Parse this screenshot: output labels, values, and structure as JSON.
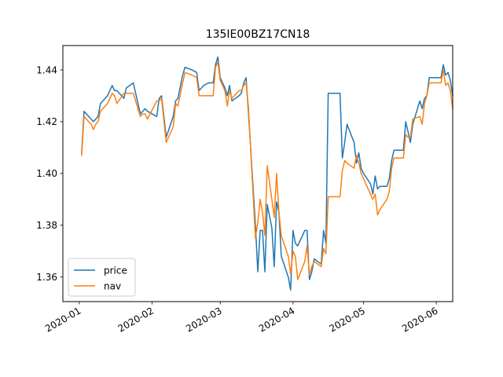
{
  "chart_data": {
    "type": "line",
    "title": "135IE00BZ17CN18",
    "xlabel": "",
    "ylabel": "",
    "x_ticks": [
      "2020-01",
      "2020-02",
      "2020-03",
      "2020-04",
      "2020-05",
      "2020-06"
    ],
    "y_ticks": [
      "1.36",
      "1.38",
      "1.40",
      "1.42",
      "1.44"
    ],
    "xlim": [
      "2019-12-25",
      "2020-06-08"
    ],
    "ylim": [
      1.3505,
      1.4494
    ],
    "grid": false,
    "legend_position": "lower-left",
    "series": [
      {
        "name": "price",
        "color": "#1f77b4",
        "points": [
          [
            "2020-01-02",
            1.408
          ],
          [
            "2020-01-03",
            1.424
          ],
          [
            "2020-01-06",
            1.421
          ],
          [
            "2020-01-07",
            1.42
          ],
          [
            "2020-01-08",
            1.421
          ],
          [
            "2020-01-09",
            1.422
          ],
          [
            "2020-01-10",
            1.427
          ],
          [
            "2020-01-13",
            1.43
          ],
          [
            "2020-01-14",
            1.432
          ],
          [
            "2020-01-15",
            1.434
          ],
          [
            "2020-01-16",
            1.432
          ],
          [
            "2020-01-17",
            1.432
          ],
          [
            "2020-01-20",
            1.429
          ],
          [
            "2020-01-21",
            1.433
          ],
          [
            "2020-01-24",
            1.435
          ],
          [
            "2020-01-27",
            1.423
          ],
          [
            "2020-01-28",
            1.424
          ],
          [
            "2020-01-29",
            1.425
          ],
          [
            "2020-01-30",
            1.424
          ],
          [
            "2020-02-03",
            1.422
          ],
          [
            "2020-02-04",
            1.429
          ],
          [
            "2020-02-05",
            1.43
          ],
          [
            "2020-02-07",
            1.414
          ],
          [
            "2020-02-10",
            1.422
          ],
          [
            "2020-02-11",
            1.428
          ],
          [
            "2020-02-12",
            1.429
          ],
          [
            "2020-02-14",
            1.438
          ],
          [
            "2020-02-15",
            1.441
          ],
          [
            "2020-02-18",
            1.44
          ],
          [
            "2020-02-20",
            1.439
          ],
          [
            "2020-02-21",
            1.432
          ],
          [
            "2020-02-23",
            1.434
          ],
          [
            "2020-02-25",
            1.435
          ],
          [
            "2020-02-27",
            1.435
          ],
          [
            "2020-02-28",
            1.442
          ],
          [
            "2020-02-29",
            1.445
          ],
          [
            "2020-03-01",
            1.437
          ],
          [
            "2020-03-02",
            1.435
          ],
          [
            "2020-03-03",
            1.433
          ],
          [
            "2020-03-04",
            1.43
          ],
          [
            "2020-03-05",
            1.434
          ],
          [
            "2020-03-06",
            1.428
          ],
          [
            "2020-03-09",
            1.43
          ],
          [
            "2020-03-10",
            1.431
          ],
          [
            "2020-03-11",
            1.435
          ],
          [
            "2020-03-12",
            1.437
          ],
          [
            "2020-03-13",
            1.424
          ],
          [
            "2020-03-16",
            1.38
          ],
          [
            "2020-03-17",
            1.362
          ],
          [
            "2020-03-18",
            1.378
          ],
          [
            "2020-03-19",
            1.378
          ],
          [
            "2020-03-20",
            1.362
          ],
          [
            "2020-03-21",
            1.388
          ],
          [
            "2020-03-23",
            1.379
          ],
          [
            "2020-03-24",
            1.364
          ],
          [
            "2020-03-25",
            1.389
          ],
          [
            "2020-03-26",
            1.385
          ],
          [
            "2020-03-27",
            1.368
          ],
          [
            "2020-03-30",
            1.36
          ],
          [
            "2020-03-31",
            1.355
          ],
          [
            "2020-04-01",
            1.378
          ],
          [
            "2020-04-02",
            1.373
          ],
          [
            "2020-04-03",
            1.372
          ],
          [
            "2020-04-06",
            1.378
          ],
          [
            "2020-04-07",
            1.378
          ],
          [
            "2020-04-08",
            1.359
          ],
          [
            "2020-04-09",
            1.362
          ],
          [
            "2020-04-10",
            1.367
          ],
          [
            "2020-04-13",
            1.365
          ],
          [
            "2020-04-14",
            1.378
          ],
          [
            "2020-04-15",
            1.373
          ],
          [
            "2020-04-16",
            1.431
          ],
          [
            "2020-04-17",
            1.431
          ],
          [
            "2020-04-20",
            1.431
          ],
          [
            "2020-04-21",
            1.431
          ],
          [
            "2020-04-22",
            1.406
          ],
          [
            "2020-04-23",
            1.412
          ],
          [
            "2020-04-24",
            1.419
          ],
          [
            "2020-04-27",
            1.412
          ],
          [
            "2020-04-28",
            1.404
          ],
          [
            "2020-04-29",
            1.408
          ],
          [
            "2020-04-30",
            1.402
          ],
          [
            "2020-05-01",
            1.4
          ],
          [
            "2020-05-04",
            1.396
          ],
          [
            "2020-05-05",
            1.392
          ],
          [
            "2020-05-06",
            1.399
          ],
          [
            "2020-05-07",
            1.394
          ],
          [
            "2020-05-08",
            1.395
          ],
          [
            "2020-05-11",
            1.395
          ],
          [
            "2020-05-12",
            1.398
          ],
          [
            "2020-05-13",
            1.405
          ],
          [
            "2020-05-14",
            1.409
          ],
          [
            "2020-05-18",
            1.409
          ],
          [
            "2020-05-19",
            1.42
          ],
          [
            "2020-05-20",
            1.416
          ],
          [
            "2020-05-21",
            1.412
          ],
          [
            "2020-05-22",
            1.419
          ],
          [
            "2020-05-25",
            1.428
          ],
          [
            "2020-05-26",
            1.425
          ],
          [
            "2020-05-27",
            1.429
          ],
          [
            "2020-05-28",
            1.43
          ],
          [
            "2020-05-29",
            1.437
          ],
          [
            "2020-06-01",
            1.437
          ],
          [
            "2020-06-03",
            1.437
          ],
          [
            "2020-06-04",
            1.442
          ],
          [
            "2020-06-05",
            1.438
          ],
          [
            "2020-06-06",
            1.439
          ],
          [
            "2020-06-07",
            1.436
          ],
          [
            "2020-06-08",
            1.43
          ]
        ]
      },
      {
        "name": "nav",
        "color": "#ff7f0e",
        "points": [
          [
            "2020-01-02",
            1.407
          ],
          [
            "2020-01-03",
            1.422
          ],
          [
            "2020-01-06",
            1.419
          ],
          [
            "2020-01-07",
            1.417
          ],
          [
            "2020-01-08",
            1.419
          ],
          [
            "2020-01-09",
            1.42
          ],
          [
            "2020-01-10",
            1.424
          ],
          [
            "2020-01-13",
            1.427
          ],
          [
            "2020-01-14",
            1.429
          ],
          [
            "2020-01-15",
            1.431
          ],
          [
            "2020-01-16",
            1.43
          ],
          [
            "2020-01-17",
            1.427
          ],
          [
            "2020-01-20",
            1.431
          ],
          [
            "2020-01-21",
            1.431
          ],
          [
            "2020-01-24",
            1.431
          ],
          [
            "2020-01-27",
            1.422
          ],
          [
            "2020-01-28",
            1.423
          ],
          [
            "2020-01-29",
            1.423
          ],
          [
            "2020-01-30",
            1.421
          ],
          [
            "2020-02-03",
            1.428
          ],
          [
            "2020-02-04",
            1.428
          ],
          [
            "2020-02-05",
            1.429
          ],
          [
            "2020-02-07",
            1.412
          ],
          [
            "2020-02-10",
            1.418
          ],
          [
            "2020-02-11",
            1.427
          ],
          [
            "2020-02-12",
            1.426
          ],
          [
            "2020-02-14",
            1.435
          ],
          [
            "2020-02-15",
            1.439
          ],
          [
            "2020-02-18",
            1.438
          ],
          [
            "2020-02-20",
            1.437
          ],
          [
            "2020-02-21",
            1.43
          ],
          [
            "2020-02-23",
            1.43
          ],
          [
            "2020-02-25",
            1.43
          ],
          [
            "2020-02-27",
            1.43
          ],
          [
            "2020-02-28",
            1.441
          ],
          [
            "2020-02-29",
            1.443
          ],
          [
            "2020-03-01",
            1.436
          ],
          [
            "2020-03-02",
            1.434
          ],
          [
            "2020-03-03",
            1.432
          ],
          [
            "2020-03-04",
            1.426
          ],
          [
            "2020-03-05",
            1.432
          ],
          [
            "2020-03-06",
            1.429
          ],
          [
            "2020-03-09",
            1.432
          ],
          [
            "2020-03-10",
            1.432
          ],
          [
            "2020-03-11",
            1.434
          ],
          [
            "2020-03-12",
            1.435
          ],
          [
            "2020-03-13",
            1.426
          ],
          [
            "2020-03-16",
            1.375
          ],
          [
            "2020-03-17",
            1.381
          ],
          [
            "2020-03-18",
            1.39
          ],
          [
            "2020-03-19",
            1.385
          ],
          [
            "2020-03-20",
            1.376
          ],
          [
            "2020-03-21",
            1.403
          ],
          [
            "2020-03-23",
            1.39
          ],
          [
            "2020-03-24",
            1.383
          ],
          [
            "2020-03-25",
            1.4
          ],
          [
            "2020-03-26",
            1.385
          ],
          [
            "2020-03-27",
            1.376
          ],
          [
            "2020-03-30",
            1.368
          ],
          [
            "2020-03-31",
            1.361
          ],
          [
            "2020-04-01",
            1.37
          ],
          [
            "2020-04-02",
            1.368
          ],
          [
            "2020-04-03",
            1.359
          ],
          [
            "2020-04-06",
            1.366
          ],
          [
            "2020-04-07",
            1.372
          ],
          [
            "2020-04-08",
            1.361
          ],
          [
            "2020-04-09",
            1.364
          ],
          [
            "2020-04-10",
            1.366
          ],
          [
            "2020-04-13",
            1.364
          ],
          [
            "2020-04-14",
            1.371
          ],
          [
            "2020-04-15",
            1.369
          ],
          [
            "2020-04-16",
            1.391
          ],
          [
            "2020-04-17",
            1.391
          ],
          [
            "2020-04-20",
            1.391
          ],
          [
            "2020-04-21",
            1.391
          ],
          [
            "2020-04-22",
            1.401
          ],
          [
            "2020-04-23",
            1.405
          ],
          [
            "2020-04-24",
            1.404
          ],
          [
            "2020-04-27",
            1.402
          ],
          [
            "2020-04-28",
            1.407
          ],
          [
            "2020-04-29",
            1.404
          ],
          [
            "2020-04-30",
            1.4
          ],
          [
            "2020-05-01",
            1.398
          ],
          [
            "2020-05-04",
            1.392
          ],
          [
            "2020-05-05",
            1.39
          ],
          [
            "2020-05-06",
            1.392
          ],
          [
            "2020-05-07",
            1.384
          ],
          [
            "2020-05-08",
            1.386
          ],
          [
            "2020-05-11",
            1.39
          ],
          [
            "2020-05-12",
            1.393
          ],
          [
            "2020-05-13",
            1.402
          ],
          [
            "2020-05-14",
            1.406
          ],
          [
            "2020-05-18",
            1.406
          ],
          [
            "2020-05-19",
            1.415
          ],
          [
            "2020-05-20",
            1.414
          ],
          [
            "2020-05-21",
            1.414
          ],
          [
            "2020-05-22",
            1.421
          ],
          [
            "2020-05-25",
            1.422
          ],
          [
            "2020-05-26",
            1.419
          ],
          [
            "2020-05-27",
            1.427
          ],
          [
            "2020-05-28",
            1.43
          ],
          [
            "2020-05-29",
            1.435
          ],
          [
            "2020-06-01",
            1.435
          ],
          [
            "2020-06-03",
            1.435
          ],
          [
            "2020-06-04",
            1.44
          ],
          [
            "2020-06-05",
            1.434
          ],
          [
            "2020-06-06",
            1.435
          ],
          [
            "2020-06-07",
            1.432
          ],
          [
            "2020-06-08",
            1.425
          ]
        ]
      }
    ]
  }
}
